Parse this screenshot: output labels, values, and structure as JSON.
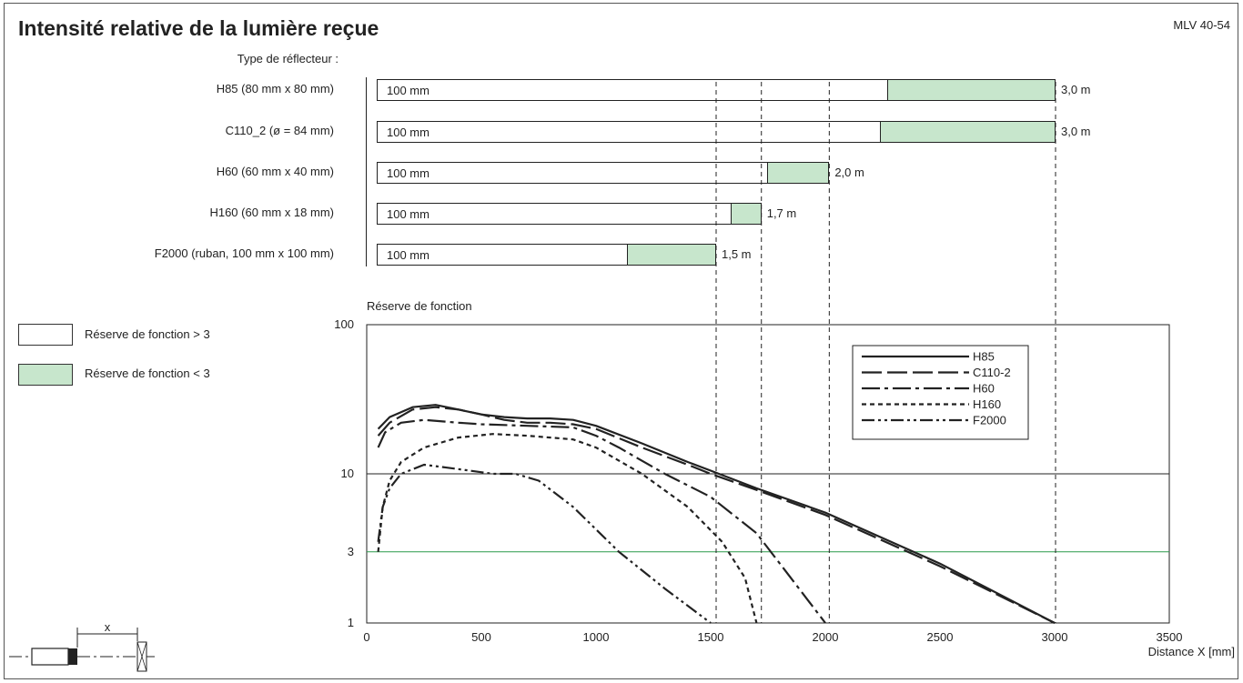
{
  "header": {
    "title": "Intensité relative de la lumière reçue",
    "doc_id": "MLV 40-54"
  },
  "reflector_section": {
    "heading": "Type de réflecteur :",
    "bar_inner_label": "100 mm",
    "rows": [
      {
        "name": "H85 (80 mm x 80 mm)",
        "start_mm": 0,
        "green_from_mm": 2250,
        "end_mm": 3000,
        "range_label": "3,0 m"
      },
      {
        "name": "C110_2 (ø = 84 mm)",
        "start_mm": 0,
        "green_from_mm": 2220,
        "end_mm": 3000,
        "range_label": "3,0 m"
      },
      {
        "name": "H60 (60 mm x 40 mm)",
        "start_mm": 0,
        "green_from_mm": 1720,
        "end_mm": 2000,
        "range_label": "2,0 m"
      },
      {
        "name": "H160 (60 mm x 18 mm)",
        "start_mm": 0,
        "green_from_mm": 1560,
        "end_mm": 1700,
        "range_label": "1,7 m"
      },
      {
        "name": "F2000 (ruban, 100 mm x 100 mm)",
        "start_mm": 0,
        "green_from_mm": 1100,
        "end_mm": 1500,
        "range_label": "1,5 m"
      }
    ]
  },
  "legend_boxes": [
    {
      "label": "Réserve de fonction > 3",
      "color": "#ffffff"
    },
    {
      "label": "Réserve de fonction < 3",
      "color": "#c7e6cc"
    }
  ],
  "chart_data": {
    "type": "line",
    "title": "",
    "ylabel": "Réserve de fonction",
    "xlabel": "Distance X [mm]",
    "xlim": [
      0,
      3500
    ],
    "ylim": [
      1,
      100
    ],
    "y_scale": "log",
    "x_ticks": [
      0,
      500,
      1000,
      1500,
      2000,
      2500,
      3000,
      3500
    ],
    "y_ticks": [
      1,
      3,
      10,
      100
    ],
    "hlines": [
      {
        "y": 10,
        "color": "#222222"
      },
      {
        "y": 3,
        "color": "#2a9a4a"
      }
    ],
    "vlines": [
      1500,
      1700,
      2000,
      3000
    ],
    "legend_position": "top-right",
    "series": [
      {
        "name": "H85",
        "style": "solid",
        "points": [
          [
            50,
            20
          ],
          [
            100,
            24
          ],
          [
            200,
            28
          ],
          [
            300,
            29
          ],
          [
            400,
            27
          ],
          [
            500,
            25
          ],
          [
            600,
            24
          ],
          [
            700,
            23.5
          ],
          [
            800,
            23.5
          ],
          [
            900,
            23
          ],
          [
            1000,
            21
          ],
          [
            1200,
            16
          ],
          [
            1400,
            12
          ],
          [
            1500,
            10.5
          ],
          [
            1700,
            8
          ],
          [
            2000,
            5.5
          ],
          [
            2500,
            2.5
          ],
          [
            3000,
            1
          ]
        ]
      },
      {
        "name": "C110-2",
        "style": "longdash",
        "points": [
          [
            50,
            18
          ],
          [
            100,
            22
          ],
          [
            200,
            27
          ],
          [
            300,
            28
          ],
          [
            400,
            27
          ],
          [
            500,
            25
          ],
          [
            600,
            23
          ],
          [
            700,
            22
          ],
          [
            800,
            22
          ],
          [
            900,
            21.5
          ],
          [
            1000,
            20
          ],
          [
            1200,
            15
          ],
          [
            1400,
            11.5
          ],
          [
            1500,
            10
          ],
          [
            1700,
            7.8
          ],
          [
            2000,
            5.3
          ],
          [
            2500,
            2.4
          ],
          [
            3000,
            1
          ]
        ]
      },
      {
        "name": "H60",
        "style": "dashdot",
        "points": [
          [
            50,
            15
          ],
          [
            80,
            19
          ],
          [
            150,
            22
          ],
          [
            250,
            23
          ],
          [
            400,
            22
          ],
          [
            500,
            21.5
          ],
          [
            700,
            21
          ],
          [
            900,
            20.5
          ],
          [
            1000,
            18
          ],
          [
            1100,
            15
          ],
          [
            1300,
            10
          ],
          [
            1500,
            7
          ],
          [
            1700,
            4
          ],
          [
            1850,
            2
          ],
          [
            2000,
            1
          ]
        ]
      },
      {
        "name": "H160",
        "style": "dotted",
        "points": [
          [
            50,
            3
          ],
          [
            70,
            6
          ],
          [
            100,
            9
          ],
          [
            150,
            12
          ],
          [
            250,
            15
          ],
          [
            400,
            17.5
          ],
          [
            550,
            18.5
          ],
          [
            700,
            18
          ],
          [
            800,
            17.5
          ],
          [
            900,
            17
          ],
          [
            1000,
            15
          ],
          [
            1200,
            10
          ],
          [
            1400,
            6
          ],
          [
            1550,
            3.5
          ],
          [
            1650,
            2
          ],
          [
            1700,
            1
          ]
        ]
      },
      {
        "name": "F2000",
        "style": "dashdotdot",
        "points": [
          [
            50,
            3.5
          ],
          [
            70,
            6
          ],
          [
            100,
            8
          ],
          [
            150,
            10
          ],
          [
            250,
            11.5
          ],
          [
            350,
            11
          ],
          [
            450,
            10.5
          ],
          [
            550,
            10
          ],
          [
            650,
            10
          ],
          [
            750,
            9
          ],
          [
            900,
            6
          ],
          [
            1100,
            3
          ],
          [
            1300,
            1.7
          ],
          [
            1500,
            1
          ]
        ]
      }
    ]
  },
  "graphic": {
    "x_label": "x"
  }
}
